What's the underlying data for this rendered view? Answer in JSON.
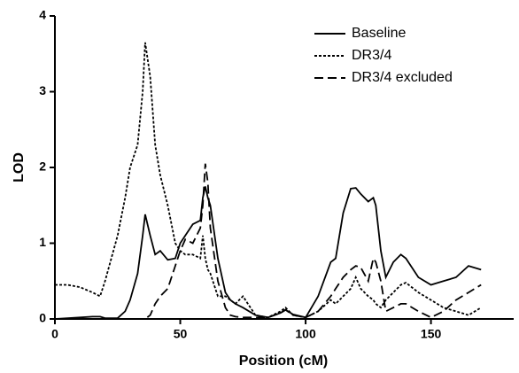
{
  "chart_data": {
    "type": "line",
    "x_label": "Position (cM)",
    "y_label": "LOD",
    "x": [
      0,
      5,
      10,
      15,
      18,
      20,
      25,
      28,
      30,
      33,
      35,
      36,
      38,
      40,
      42,
      45,
      48,
      50,
      52,
      55,
      58,
      59,
      60,
      61,
      62,
      65,
      68,
      70,
      72,
      75,
      80,
      85,
      90,
      92,
      95,
      100,
      105,
      110,
      112,
      115,
      118,
      120,
      122,
      125,
      127,
      128,
      130,
      132,
      135,
      138,
      140,
      145,
      150,
      155,
      160,
      165,
      170
    ],
    "series": [
      {
        "name": "Baseline",
        "color": "#000000",
        "dash": "solid",
        "values": [
          0,
          0.01,
          0.02,
          0.03,
          0.03,
          0.01,
          0.01,
          0.1,
          0.25,
          0.6,
          1.1,
          1.38,
          1.1,
          0.85,
          0.9,
          0.78,
          0.8,
          1.0,
          1.1,
          1.25,
          1.3,
          1.6,
          1.75,
          1.6,
          1.5,
          0.8,
          0.35,
          0.25,
          0.2,
          0.15,
          0.05,
          0.02,
          0.08,
          0.12,
          0.06,
          0.02,
          0.3,
          0.75,
          0.8,
          1.4,
          1.72,
          1.73,
          1.65,
          1.55,
          1.6,
          1.5,
          0.9,
          0.55,
          0.75,
          0.85,
          0.8,
          0.55,
          0.45,
          0.5,
          0.55,
          0.7,
          0.65
        ]
      },
      {
        "name": "DR3/4",
        "color": "#000000",
        "dash": "dotted",
        "values": [
          0.45,
          0.45,
          0.42,
          0.35,
          0.3,
          0.5,
          1.1,
          1.6,
          2.0,
          2.3,
          3.0,
          3.65,
          3.2,
          2.3,
          1.9,
          1.5,
          1.0,
          0.9,
          0.85,
          0.85,
          0.8,
          1.1,
          0.8,
          0.65,
          0.6,
          0.3,
          0.3,
          0.25,
          0.2,
          0.3,
          0.05,
          0.02,
          0.1,
          0.15,
          0.05,
          0.02,
          0.1,
          0.25,
          0.2,
          0.3,
          0.4,
          0.55,
          0.4,
          0.3,
          0.25,
          0.2,
          0.15,
          0.25,
          0.35,
          0.45,
          0.48,
          0.35,
          0.25,
          0.15,
          0.1,
          0.05,
          0.15
        ]
      },
      {
        "name": "DR3/4 excluded",
        "color": "#000000",
        "dash": "dashed",
        "values": [
          0,
          0,
          0,
          0,
          0,
          0,
          0,
          0,
          0,
          0,
          0,
          0,
          0.05,
          0.2,
          0.3,
          0.4,
          0.7,
          0.9,
          1.05,
          1.0,
          1.2,
          1.5,
          2.05,
          1.8,
          1.2,
          0.5,
          0.15,
          0.05,
          0.03,
          0.02,
          0.02,
          0.02,
          0.08,
          0.12,
          0.05,
          0.02,
          0.1,
          0.3,
          0.4,
          0.55,
          0.65,
          0.7,
          0.68,
          0.5,
          0.8,
          0.75,
          0.5,
          0.1,
          0.15,
          0.2,
          0.2,
          0.1,
          0.02,
          0.1,
          0.25,
          0.35,
          0.45
        ]
      }
    ],
    "xlim": [
      0,
      183
    ],
    "xticks": [
      0,
      50,
      100,
      150
    ],
    "ylim": [
      0,
      4
    ],
    "yticks": [
      0,
      1,
      2,
      3,
      4
    ],
    "legend": "top-right",
    "grid": false
  }
}
